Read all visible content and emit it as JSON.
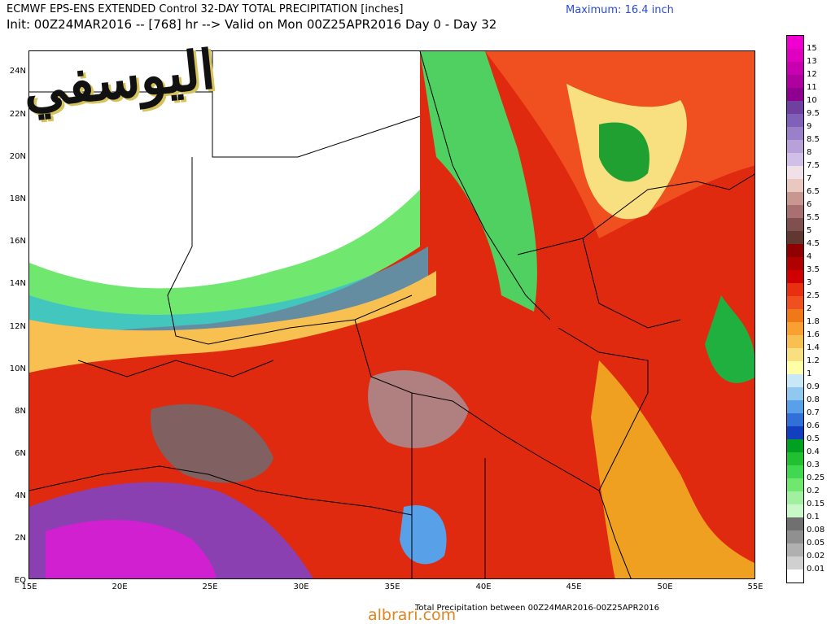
{
  "header": {
    "line1": "ECMWF EPS-ENS EXTENDED Control 32-DAY TOTAL PRECIPITATION [inches]",
    "line2": "Init: 00Z24MAR2016 -- [768] hr --> Valid on Mon 00Z25APR2016  Day 0 - Day 32",
    "maximum": "Maximum: 16.4 inch"
  },
  "map": {
    "lat_labels": [
      "24N",
      "22N",
      "20N",
      "18N",
      "16N",
      "14N",
      "12N",
      "10N",
      "8N",
      "6N",
      "4N",
      "2N",
      "EQ"
    ],
    "lon_labels": [
      "15E",
      "20E",
      "25E",
      "30E",
      "35E",
      "40E",
      "45E",
      "50E",
      "55E"
    ]
  },
  "legend": {
    "labels": [
      "15",
      "13",
      "12",
      "11",
      "10",
      "9.5",
      "9",
      "8.5",
      "8",
      "7.5",
      "7",
      "6.5",
      "6",
      "5.5",
      "5",
      "4.5",
      "4",
      "3.5",
      "3",
      "2.5",
      "2",
      "1.8",
      "1.6",
      "1.4",
      "1.2",
      "1",
      "0.9",
      "0.8",
      "0.7",
      "0.6",
      "0.5",
      "0.4",
      "0.3",
      "0.25",
      "0.2",
      "0.15",
      "0.1",
      "0.08",
      "0.05",
      "0.02",
      "0.01"
    ],
    "colors": [
      "#f000d0",
      "#e000c0",
      "#c800b0",
      "#b000a0",
      "#900090",
      "#7040a0",
      "#8060b8",
      "#9a80c8",
      "#b8a0d8",
      "#d0c0e8",
      "#f0e0e8",
      "#e8c8c0",
      "#c89890",
      "#a87070",
      "#805050",
      "#603830",
      "#900000",
      "#b00000",
      "#d00000",
      "#e83010",
      "#f05020",
      "#f07818",
      "#f8a030",
      "#f8c050",
      "#f8e080",
      "#ffffa8",
      "#c8e8f8",
      "#90c8f0",
      "#58a0e8",
      "#3070d8",
      "#1040c0",
      "#00a020",
      "#20c030",
      "#40d850",
      "#70e870",
      "#a0f0a0",
      "#c8f8c8",
      "#707070",
      "#909090",
      "#b0b0b0",
      "#d0d0d0",
      "#ffffff"
    ]
  },
  "footer": "Total Precipitation between 00Z24MAR2016-00Z25APR2016",
  "watermark": "albrari.com",
  "arabic_logo": "اليوسفي"
}
